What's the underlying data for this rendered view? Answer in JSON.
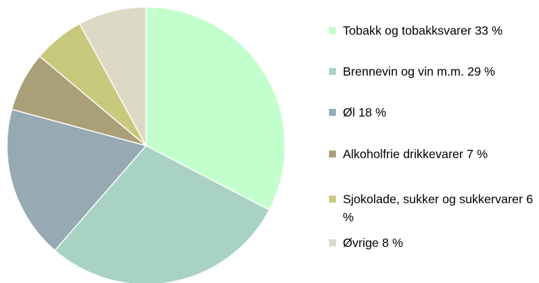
{
  "chart_data": {
    "type": "pie",
    "categories": [
      "Tobakk og tobakksvarer",
      "Brennevin og vin m.m.",
      "Øl",
      "Alkoholfrie drikkevarer",
      "Sjokolade, sukker og sukkervarer",
      "Øvrige"
    ],
    "values": [
      33,
      29,
      18,
      7,
      6,
      8
    ],
    "value_labels": [
      "33 %",
      "29 %",
      "18 %",
      "7 %",
      "6 %",
      "8 %"
    ],
    "colors": [
      "#c3ffcc",
      "#a8d3c4",
      "#97a9b2",
      "#ab9f78",
      "#c8c97d",
      "#dcdac5"
    ]
  }
}
